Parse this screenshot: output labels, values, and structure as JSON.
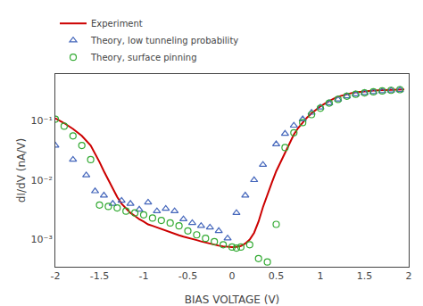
{
  "chart_data": {
    "type": "line",
    "title": "",
    "xlabel": "BIAS VOLTAGE (V)",
    "ylabel": "dI/dV (nA/V)",
    "log": "y",
    "grid": false,
    "legend": "upper left",
    "xlim": [
      -2.0,
      2.0
    ],
    "ylim": [
      0.00035,
      0.6
    ],
    "xticks": [
      -2,
      -1.5,
      -1,
      -0.5,
      0,
      0.5,
      1,
      1.5,
      2
    ],
    "yticks": [
      {
        "value": 0.001,
        "label": "10⁻³"
      },
      {
        "value": 0.01,
        "label": "10⁻²"
      },
      {
        "value": 0.1,
        "label": "10⁻¹"
      }
    ],
    "series": [
      {
        "name": "Experiment",
        "type": "line",
        "color": "#cc0000",
        "x": [
          -2.0,
          -1.9,
          -1.8,
          -1.7,
          -1.6,
          -1.55,
          -1.5,
          -1.45,
          -1.4,
          -1.35,
          -1.3,
          -1.25,
          -1.2,
          -1.15,
          -1.1,
          -1.05,
          -1.0,
          -0.95,
          -0.9,
          -0.85,
          -0.8,
          -0.75,
          -0.7,
          -0.65,
          -0.6,
          -0.55,
          -0.5,
          -0.45,
          -0.4,
          -0.35,
          -0.3,
          -0.25,
          -0.2,
          -0.15,
          -0.1,
          -0.05,
          0.0,
          0.05,
          0.1,
          0.15,
          0.2,
          0.25,
          0.3,
          0.35,
          0.4,
          0.45,
          0.5,
          0.55,
          0.6,
          0.65,
          0.7,
          0.75,
          0.8,
          0.85,
          0.9,
          0.95,
          1.0,
          1.05,
          1.1,
          1.15,
          1.2,
          1.25,
          1.3,
          1.35,
          1.4,
          1.45,
          1.5,
          1.55,
          1.6,
          1.65,
          1.7,
          1.75,
          1.8,
          1.85,
          1.9,
          1.95
        ],
        "values": [
          0.108,
          0.09,
          0.072,
          0.055,
          0.038,
          0.028,
          0.02,
          0.014,
          0.01,
          0.0072,
          0.0052,
          0.004,
          0.0033,
          0.0028,
          0.0025,
          0.0022,
          0.002,
          0.0018,
          0.0017,
          0.0016,
          0.0015,
          0.0014,
          0.0013,
          0.00125,
          0.00118,
          0.00112,
          0.00108,
          0.00103,
          0.00098,
          0.00093,
          0.00089,
          0.00085,
          0.00082,
          0.00079,
          0.00077,
          0.000755,
          0.000748,
          0.000755,
          0.00078,
          0.00086,
          0.001,
          0.0013,
          0.002,
          0.0035,
          0.0058,
          0.009,
          0.014,
          0.02,
          0.03,
          0.042,
          0.058,
          0.075,
          0.092,
          0.112,
          0.132,
          0.152,
          0.172,
          0.192,
          0.212,
          0.232,
          0.25,
          0.264,
          0.276,
          0.287,
          0.296,
          0.303,
          0.309,
          0.314,
          0.318,
          0.321,
          0.324,
          0.326,
          0.328,
          0.329,
          0.331,
          0.332
        ]
      },
      {
        "name": "Theory, low tunneling probability",
        "type": "scatter",
        "marker": "triangle-up",
        "color": "#4466bb",
        "x": [
          -2.0,
          -1.8,
          -1.65,
          -1.55,
          -1.45,
          -1.35,
          -1.25,
          -1.15,
          -1.05,
          -0.95,
          -0.85,
          -0.75,
          -0.65,
          -0.55,
          -0.45,
          -0.35,
          -0.25,
          -0.15,
          -0.05,
          0.05,
          0.15,
          0.25,
          0.35,
          0.5,
          0.6,
          0.7,
          0.8,
          0.9,
          1.0,
          1.1,
          1.2,
          1.3,
          1.4,
          1.5,
          1.6,
          1.7,
          1.8,
          1.9
        ],
        "values": [
          0.038,
          0.022,
          0.012,
          0.0065,
          0.0055,
          0.004,
          0.0045,
          0.004,
          0.0032,
          0.0042,
          0.003,
          0.0033,
          0.003,
          0.0022,
          0.0019,
          0.0017,
          0.0016,
          0.0014,
          0.00105,
          0.0028,
          0.0055,
          0.01,
          0.018,
          0.04,
          0.06,
          0.082,
          0.105,
          0.135,
          0.165,
          0.195,
          0.225,
          0.255,
          0.275,
          0.29,
          0.3,
          0.31,
          0.318,
          0.325
        ]
      },
      {
        "name": "Theory, surface pinning",
        "type": "scatter",
        "marker": "circle",
        "color": "#33aa33",
        "x": [
          -2.0,
          -1.9,
          -1.8,
          -1.7,
          -1.6,
          -1.5,
          -1.4,
          -1.3,
          -1.2,
          -1.1,
          -1.0,
          -0.9,
          -0.8,
          -0.7,
          -0.6,
          -0.5,
          -0.4,
          -0.3,
          -0.2,
          -0.1,
          0.0,
          0.05,
          0.1,
          0.2,
          0.3,
          0.4,
          0.5,
          0.6,
          0.7,
          0.8,
          0.9,
          1.0,
          1.1,
          1.2,
          1.3,
          1.4,
          1.5,
          1.6,
          1.7,
          1.8,
          1.9
        ],
        "values": [
          0.105,
          0.08,
          0.055,
          0.038,
          0.022,
          0.0038,
          0.0036,
          0.0034,
          0.003,
          0.0028,
          0.0026,
          0.0023,
          0.0021,
          0.0019,
          0.0017,
          0.0014,
          0.0012,
          0.00105,
          0.00092,
          0.00082,
          0.00075,
          0.00072,
          0.00075,
          0.00082,
          0.00048,
          0.00042,
          0.0018,
          0.035,
          0.062,
          0.092,
          0.125,
          0.16,
          0.195,
          0.225,
          0.255,
          0.275,
          0.29,
          0.302,
          0.312,
          0.32,
          0.328
        ]
      }
    ]
  }
}
